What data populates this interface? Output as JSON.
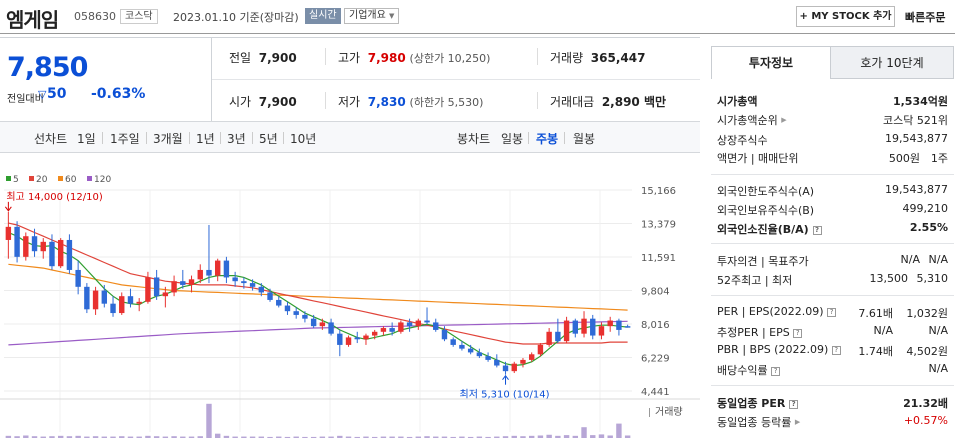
{
  "header": {
    "name": "엠게임",
    "code": "058630",
    "market": "코스닥",
    "date": "2023.01.10 기준(장마감)",
    "realtime": "실시간",
    "company_info": "기업개요",
    "mystock": "+ MY STOCK 추가",
    "quick_order": "빠른주문"
  },
  "quote": {
    "price": "7,850",
    "change_label": "전일대비",
    "change_value": "50",
    "change_pct": "-0.63%",
    "prev_label": "전일",
    "prev": "7,900",
    "high_label": "고가",
    "high": "7,980",
    "upper_limit": "(상한가 10,250)",
    "volume_label": "거래량",
    "volume": "365,447",
    "open_label": "시가",
    "open": "7,900",
    "low_label": "저가",
    "low": "7,830",
    "lower_limit": "(하한가 5,530)",
    "amount_label": "거래대금",
    "amount": "2,890 백만"
  },
  "period_tabs": {
    "label": "선차트",
    "items": [
      "1일",
      "1주일",
      "3개월",
      "1년",
      "3년",
      "5년",
      "10년"
    ]
  },
  "candle_tabs": {
    "label": "봉차트",
    "items": [
      "일봉",
      "주봉",
      "월봉"
    ],
    "active": "주봉"
  },
  "chart_data": {
    "type": "candlestick",
    "legend": [
      {
        "name": "5",
        "color": "#2f9e2f"
      },
      {
        "name": "20",
        "color": "#e0443a"
      },
      {
        "name": "60",
        "color": "#f08a1c"
      },
      {
        "name": "120",
        "color": "#9a5cc6"
      }
    ],
    "y_ticks": [
      "15,166",
      "13,379",
      "11,591",
      "9,804",
      "8,016",
      "6,229",
      "4,441"
    ],
    "ylim": [
      4441,
      15166
    ],
    "high_note": "최고 14,000 (12/10)",
    "low_note": "최저 5,310 (10/14)",
    "volume_label": "거래량",
    "candles": [
      [
        12500,
        14000,
        11500,
        13200
      ],
      [
        13200,
        13500,
        11300,
        11600
      ],
      [
        11600,
        12900,
        11400,
        12700
      ],
      [
        12700,
        13100,
        11600,
        11900
      ],
      [
        11900,
        12600,
        11500,
        12400
      ],
      [
        12400,
        12800,
        10900,
        11100
      ],
      [
        11100,
        12600,
        11000,
        12500
      ],
      [
        12500,
        12800,
        10700,
        10900
      ],
      [
        10900,
        11400,
        9600,
        10000
      ],
      [
        10000,
        10200,
        8600,
        8800
      ],
      [
        8800,
        10000,
        8500,
        9800
      ],
      [
        9800,
        10100,
        8900,
        9100
      ],
      [
        9100,
        9500,
        8400,
        8600
      ],
      [
        8600,
        9700,
        8500,
        9500
      ],
      [
        9500,
        9900,
        8900,
        9100
      ],
      [
        9100,
        9400,
        8700,
        9200
      ],
      [
        9200,
        10800,
        9100,
        10500
      ],
      [
        10500,
        10900,
        9300,
        9500
      ],
      [
        9500,
        10000,
        8900,
        9700
      ],
      [
        9700,
        10600,
        9500,
        10300
      ],
      [
        10300,
        10900,
        9900,
        10100
      ],
      [
        10100,
        10600,
        9700,
        10400
      ],
      [
        10400,
        11200,
        10200,
        10900
      ],
      [
        10900,
        13300,
        10200,
        10600
      ],
      [
        10600,
        11500,
        10300,
        11400
      ],
      [
        11400,
        11600,
        10200,
        10500
      ],
      [
        10500,
        10800,
        10000,
        10300
      ],
      [
        10300,
        10500,
        9900,
        10200
      ],
      [
        10200,
        10400,
        9800,
        10000
      ],
      [
        10000,
        10200,
        9500,
        9700
      ],
      [
        9700,
        9900,
        9200,
        9300
      ],
      [
        9300,
        9500,
        8900,
        9000
      ],
      [
        9000,
        9200,
        8500,
        8700
      ],
      [
        8700,
        8900,
        8300,
        8500
      ],
      [
        8500,
        8700,
        8100,
        8300
      ],
      [
        8300,
        8500,
        7800,
        7900
      ],
      [
        7900,
        8300,
        7700,
        8100
      ],
      [
        8100,
        8300,
        7400,
        7500
      ],
      [
        7500,
        7700,
        6300,
        6900
      ],
      [
        6900,
        7400,
        6800,
        7300
      ],
      [
        7300,
        7600,
        7000,
        7200
      ],
      [
        7200,
        7500,
        6900,
        7400
      ],
      [
        7400,
        7700,
        7200,
        7600
      ],
      [
        7600,
        7900,
        7400,
        7800
      ],
      [
        7800,
        8100,
        7400,
        7600
      ],
      [
        7600,
        8200,
        7500,
        8100
      ],
      [
        8100,
        8300,
        7600,
        7900
      ],
      [
        7900,
        8300,
        7700,
        8200
      ],
      [
        8200,
        8900,
        8000,
        8100
      ],
      [
        8100,
        8300,
        7600,
        7700
      ],
      [
        7700,
        7900,
        7100,
        7200
      ],
      [
        7200,
        7300,
        6800,
        6900
      ],
      [
        6900,
        7100,
        6600,
        6700
      ],
      [
        6700,
        6900,
        6400,
        6500
      ],
      [
        6500,
        6700,
        6200,
        6300
      ],
      [
        6300,
        6500,
        6000,
        6100
      ],
      [
        6100,
        6400,
        5700,
        5800
      ],
      [
        5800,
        6000,
        5310,
        5500
      ],
      [
        5500,
        6000,
        5400,
        5900
      ],
      [
        5900,
        6200,
        5700,
        6100
      ],
      [
        6100,
        6500,
        6000,
        6400
      ],
      [
        6400,
        7000,
        6300,
        6900
      ],
      [
        6900,
        7800,
        6800,
        7600
      ],
      [
        7600,
        8300,
        7000,
        7100
      ],
      [
        7100,
        8400,
        7000,
        8200
      ],
      [
        8200,
        8300,
        7300,
        7500
      ],
      [
        7500,
        8700,
        7300,
        8300
      ],
      [
        8300,
        8500,
        7200,
        7400
      ],
      [
        7400,
        8100,
        7200,
        7900
      ],
      [
        7900,
        8400,
        7600,
        8200
      ],
      [
        8200,
        8300,
        7400,
        7700
      ],
      [
        7900,
        7980,
        7830,
        7850
      ]
    ],
    "volumes": [
      0.06,
      0.05,
      0.07,
      0.05,
      0.04,
      0.05,
      0.06,
      0.05,
      0.06,
      0.04,
      0.05,
      0.04,
      0.04,
      0.05,
      0.04,
      0.04,
      0.06,
      0.05,
      0.04,
      0.05,
      0.04,
      0.04,
      0.05,
      0.95,
      0.12,
      0.06,
      0.04,
      0.04,
      0.04,
      0.04,
      0.03,
      0.04,
      0.03,
      0.04,
      0.03,
      0.03,
      0.04,
      0.04,
      0.06,
      0.04,
      0.03,
      0.04,
      0.03,
      0.04,
      0.04,
      0.04,
      0.03,
      0.04,
      0.05,
      0.04,
      0.04,
      0.03,
      0.04,
      0.03,
      0.04,
      0.03,
      0.04,
      0.05,
      0.06,
      0.05,
      0.06,
      0.07,
      0.09,
      0.06,
      0.08,
      0.06,
      0.3,
      0.08,
      0.1,
      0.07,
      0.4,
      0.07
    ],
    "ma5": [
      12900,
      12700,
      12400,
      12200,
      12150,
      12200,
      11900,
      11700,
      11400,
      10900,
      10400,
      9900,
      9500,
      9200,
      9100,
      9050,
      9300,
      9500,
      9600,
      9800,
      10000,
      10100,
      10300,
      10500,
      10600,
      10600,
      10600,
      10500,
      10300,
      10100,
      9800,
      9500,
      9200,
      8900,
      8600,
      8400,
      8200,
      8000,
      7700,
      7500,
      7300,
      7200,
      7300,
      7400,
      7500,
      7700,
      7800,
      7900,
      8000,
      7900,
      7700,
      7400,
      7100,
      6800,
      6500,
      6300,
      6100,
      5900,
      5800,
      5850,
      6000,
      6300,
      6700,
      7100,
      7500,
      7700,
      7800,
      7900,
      7950,
      7950,
      7900,
      7850
    ],
    "ma20": [
      13400,
      13300,
      13100,
      12900,
      12700,
      12500,
      12300,
      12100,
      11900,
      11700,
      11500,
      11300,
      11100,
      10900,
      10700,
      10600,
      10500,
      10400,
      10300,
      10250,
      10200,
      10150,
      10100,
      10100,
      10100,
      10100,
      10050,
      10000,
      9950,
      9850,
      9750,
      9650,
      9550,
      9450,
      9350,
      9250,
      9150,
      9050,
      8950,
      8850,
      8750,
      8650,
      8550,
      8450,
      8350,
      8250,
      8150,
      8050,
      7950,
      7850,
      7750,
      7650,
      7550,
      7450,
      7350,
      7250,
      7150,
      7050,
      7000,
      6950,
      6950,
      6950,
      7000,
      7000,
      7000,
      7000,
      7000,
      7000,
      7000,
      7050,
      7050,
      7050
    ],
    "ma60": [
      11200,
      11150,
      11100,
      11050,
      11000,
      10900,
      10800,
      10700,
      10600,
      10500,
      10400,
      10300,
      10200,
      10100,
      10050,
      10000,
      9950,
      9900,
      9850,
      9800,
      9780,
      9760,
      9740,
      9720,
      9700,
      9680,
      9660,
      9640,
      9620,
      9600,
      9580,
      9560,
      9540,
      9520,
      9500,
      9480,
      9460,
      9440,
      9420,
      9400,
      9380,
      9360,
      9340,
      9320,
      9300,
      9280,
      9260,
      9240,
      9220,
      9200,
      9180,
      9160,
      9140,
      9120,
      9100,
      9080,
      9060,
      9040,
      9020,
      9000,
      8980,
      8960,
      8940,
      8920,
      8900,
      8880,
      8860,
      8840,
      8820,
      8800,
      8780,
      8760
    ],
    "ma120": [
      6900,
      6930,
      6960,
      6990,
      7020,
      7050,
      7080,
      7110,
      7140,
      7170,
      7200,
      7230,
      7260,
      7290,
      7320,
      7350,
      7380,
      7410,
      7440,
      7470,
      7500,
      7520,
      7540,
      7560,
      7580,
      7600,
      7620,
      7640,
      7660,
      7680,
      7700,
      7720,
      7740,
      7760,
      7780,
      7800,
      7810,
      7820,
      7830,
      7840,
      7850,
      7860,
      7870,
      7880,
      7890,
      7900,
      7910,
      7920,
      7930,
      7940,
      7950,
      7960,
      7970,
      7980,
      7990,
      8000,
      8010,
      8020,
      8030,
      8040,
      8050,
      8060,
      8070,
      8080,
      8090,
      8100,
      8110,
      8120,
      8130,
      8140,
      8150,
      8160
    ]
  },
  "invest": {
    "tab_info": "투자정보",
    "tab_order": "호가 10단계",
    "market_cap_label": "시가총액",
    "market_cap": "1,534억원",
    "cap_rank_label": "시가총액순위",
    "cap_rank": "코스닥 521위",
    "shares_label": "상장주식수",
    "shares": "19,543,877",
    "par_label": "액면가 | 매매단위",
    "par": "500원",
    "unit": "1주",
    "foreign_limit_label": "외국인한도주식수(A)",
    "foreign_limit": "19,543,877",
    "foreign_hold_label": "외국인보유주식수(B)",
    "foreign_hold": "499,210",
    "foreign_rate_label": "외국인소진율(B/A)",
    "foreign_rate": "2.55%",
    "opinion_label": "투자의견 | 목표주가",
    "opinion": "N/A",
    "target": "N/A",
    "week52_label": "52주최고 | 최저",
    "week52_high": "13,500",
    "week52_low": "5,310",
    "per_label": "PER | EPS(2022.09)",
    "per": "7.61배",
    "eps": "1,032원",
    "est_per_label": "추정PER | EPS",
    "est_per": "N/A",
    "est_eps": "N/A",
    "pbr_label": "PBR | BPS (2022.09)",
    "pbr": "1.74배",
    "bps": "4,502원",
    "div_label": "배당수익률",
    "div": "N/A",
    "ind_per_label": "동일업종 PER",
    "ind_per": "21.32배",
    "ind_rate_label": "동일업종 등락률",
    "ind_rate": "+0.57%"
  }
}
